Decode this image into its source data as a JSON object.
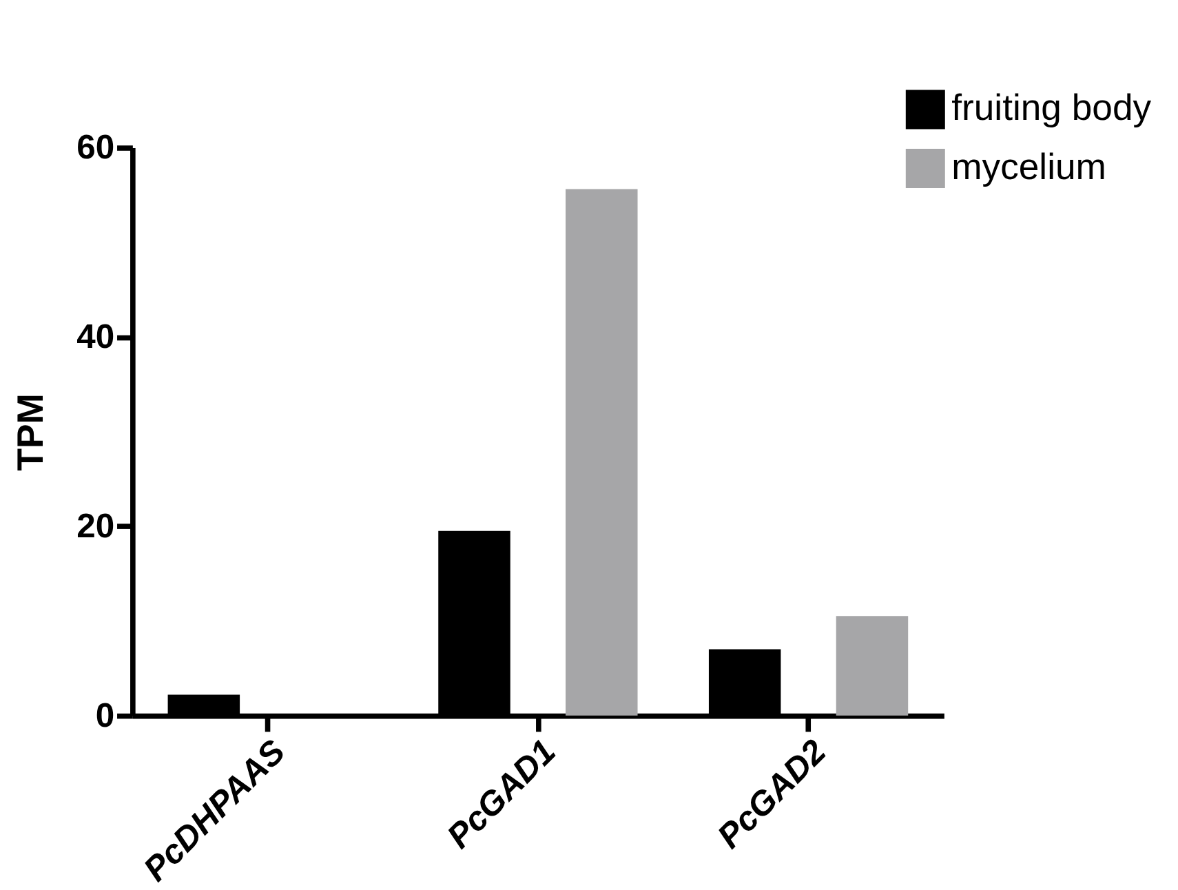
{
  "chart_data": {
    "type": "bar",
    "ylabel": "TPM",
    "categories": [
      "PcDHPAAS",
      "PcGAD1",
      "PcGAD2"
    ],
    "series": [
      {
        "name": "fruiting body",
        "color": "#000000",
        "values": [
          2.2,
          19.5,
          7.0
        ]
      },
      {
        "name": "mycelium",
        "color": "#a6a6a8",
        "values": [
          0,
          55.6,
          10.5
        ]
      }
    ],
    "ylim": [
      0,
      60
    ],
    "yticks": [
      0,
      20,
      40,
      60
    ],
    "grid": false,
    "legend": "top right"
  }
}
